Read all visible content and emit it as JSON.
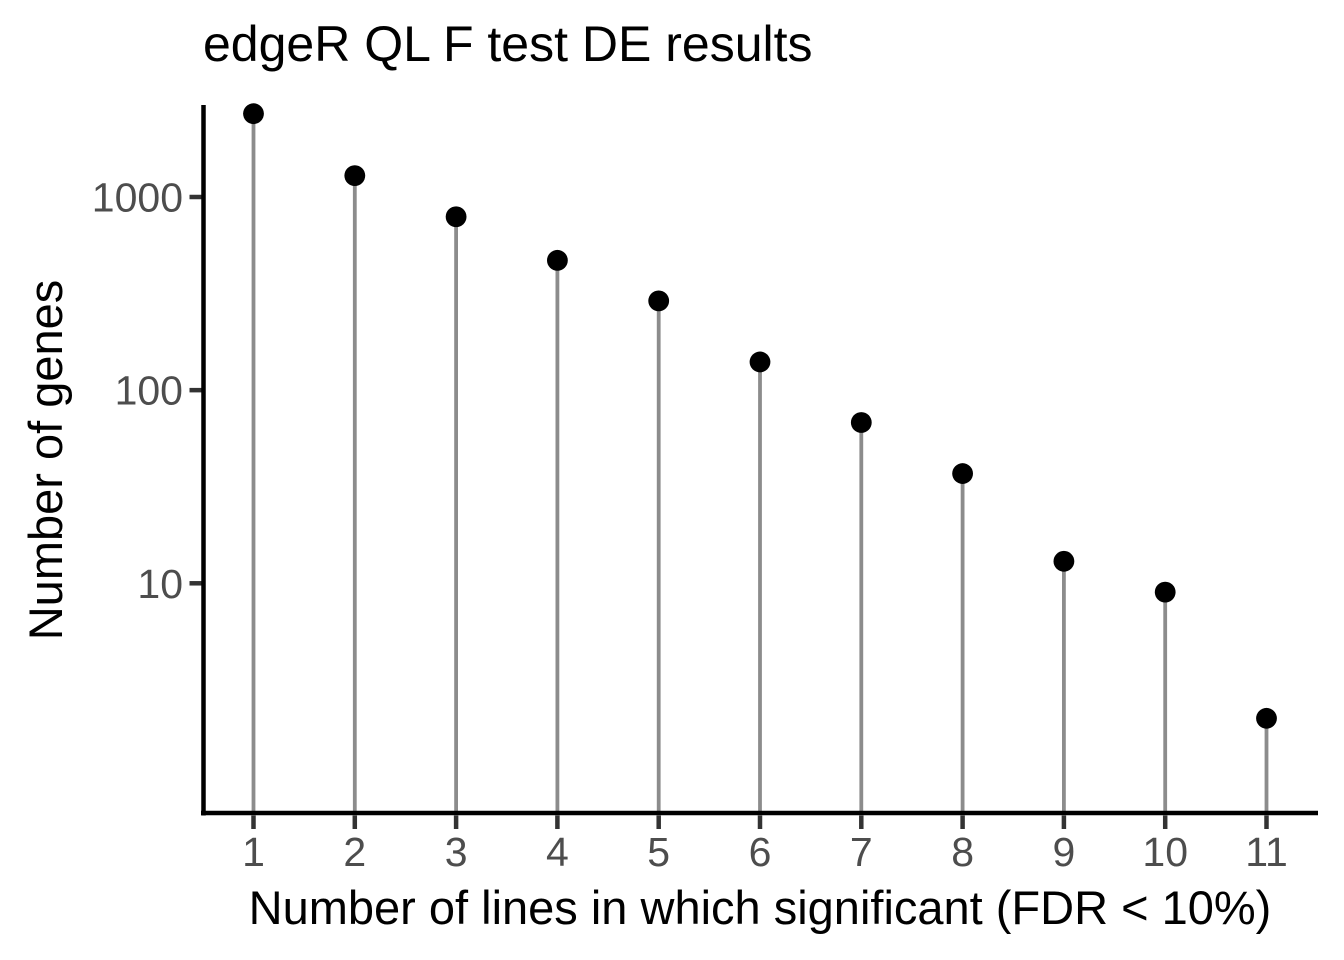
{
  "figure": {
    "title": "edgeR QL F test DE results"
  },
  "chart_data": {
    "type": "scatter",
    "variant": "lollipop-stem-plot",
    "title": "edgeR QL F test DE results",
    "xlabel": "Number of lines in which significant (FDR < 10%)",
    "ylabel": "Number of genes",
    "x": [
      1,
      2,
      3,
      4,
      5,
      6,
      7,
      8,
      9,
      10,
      11
    ],
    "y": [
      2700,
      1290,
      790,
      470,
      290,
      140,
      68,
      37,
      13,
      9,
      2
    ],
    "x_tick_labels": [
      "1",
      "2",
      "3",
      "4",
      "5",
      "6",
      "7",
      "8",
      "9",
      "10",
      "11"
    ],
    "y_ticks": [
      1000,
      100,
      10
    ],
    "y_tick_labels": [
      "1000",
      "100",
      "10"
    ],
    "yscale": "log10",
    "xlim": [
      0.5,
      11.5
    ],
    "ylim": [
      0.65,
      2970
    ],
    "grid": false,
    "legend": "none",
    "colors": {
      "point": "#000000",
      "stem": "#8c8c8c",
      "axis_line": "#000000",
      "tick_mark": "#333333",
      "tick_text": "#4d4d4d",
      "title_text": "#000000"
    }
  }
}
